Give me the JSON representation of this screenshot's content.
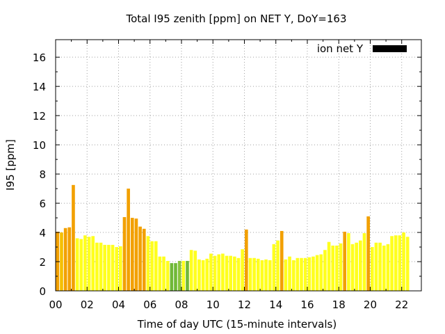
{
  "chart_data": {
    "type": "bar",
    "title": "Total I95 zenith [ppm] on NET Y, DoY=163",
    "xlabel": "Time of day UTC (15-minute intervals)",
    "ylabel": "I95 [ppm]",
    "xlim": [
      0,
      23.25
    ],
    "ylim": [
      0,
      17.2
    ],
    "x_ticks": [
      "00",
      "02",
      "04",
      "06",
      "08",
      "10",
      "12",
      "14",
      "16",
      "18",
      "20",
      "22"
    ],
    "y_ticks": [
      "0",
      "2",
      "4",
      "6",
      "8",
      "10",
      "12",
      "14",
      "16"
    ],
    "legend": {
      "label": "ion net Y",
      "placement": "top-right",
      "color": "#000000"
    },
    "grid": true,
    "bar_interval_hours": 0.25,
    "values": [
      4.05,
      4.0,
      4.3,
      4.35,
      7.25,
      3.6,
      3.55,
      3.8,
      3.7,
      3.75,
      3.3,
      3.3,
      3.15,
      3.15,
      3.15,
      3.0,
      3.05,
      5.05,
      7.0,
      5.0,
      4.95,
      4.4,
      4.25,
      3.75,
      3.4,
      3.4,
      2.35,
      2.35,
      2.05,
      1.9,
      1.9,
      2.05,
      2.05,
      2.05,
      2.8,
      2.75,
      2.15,
      2.1,
      2.2,
      2.55,
      2.4,
      2.5,
      2.55,
      2.4,
      2.4,
      2.35,
      2.25,
      2.85,
      4.2,
      2.25,
      2.25,
      2.2,
      2.1,
      2.15,
      2.1,
      3.2,
      3.45,
      4.1,
      2.15,
      2.35,
      2.1,
      2.25,
      2.25,
      2.25,
      2.3,
      2.35,
      2.45,
      2.5,
      2.8,
      3.35,
      3.1,
      3.1,
      3.25,
      4.05,
      3.95,
      3.2,
      3.3,
      3.45,
      3.95,
      5.1,
      3.0,
      3.3,
      3.3,
      3.1,
      3.2,
      3.75,
      3.8,
      3.8,
      4.0,
      3.7
    ],
    "colors": [
      "#f2a000",
      "#f5bf00",
      "#f2a000",
      "#f2a000",
      "#f2a000",
      "#ffff1e",
      "#ffff1e",
      "#ffff1e",
      "#ffff1e",
      "#ffff1e",
      "#ffff1e",
      "#ffff1e",
      "#ffff1e",
      "#ffff1e",
      "#ffff1e",
      "#ffff1e",
      "#ffff1e",
      "#f2a000",
      "#f2a000",
      "#f2a000",
      "#f2a000",
      "#f2a000",
      "#f2a000",
      "#ffff1e",
      "#ffff1e",
      "#ffff1e",
      "#ffff1e",
      "#ffff1e",
      "#ffff1e",
      "#70b838",
      "#70b838",
      "#88c43e",
      "#ffff1e",
      "#70b838",
      "#ffff1e",
      "#ffff1e",
      "#ffff1e",
      "#ffff1e",
      "#ffff1e",
      "#ffff1e",
      "#ffff1e",
      "#ffff1e",
      "#ffff1e",
      "#ffff1e",
      "#ffff1e",
      "#ffff1e",
      "#ffff1e",
      "#ffff1e",
      "#f2a000",
      "#ffff1e",
      "#ffff1e",
      "#ffff1e",
      "#ffff1e",
      "#ffff1e",
      "#ffff1e",
      "#ffff1e",
      "#ffff1e",
      "#f2a000",
      "#ffff1e",
      "#ffff1e",
      "#ffff1e",
      "#ffff1e",
      "#ffff1e",
      "#ffff1e",
      "#ffff1e",
      "#ffff1e",
      "#ffff1e",
      "#ffff1e",
      "#ffff1e",
      "#ffff1e",
      "#ffff1e",
      "#ffff1e",
      "#ffff1e",
      "#f2a000",
      "#ffff1e",
      "#ffff1e",
      "#ffff1e",
      "#ffff1e",
      "#ffff1e",
      "#f2a000",
      "#ffff1e",
      "#ffff1e",
      "#ffff1e",
      "#ffff1e",
      "#ffff1e",
      "#ffff1e",
      "#ffff1e",
      "#ffff1e",
      "#ffff1e",
      "#ffff1e"
    ]
  }
}
